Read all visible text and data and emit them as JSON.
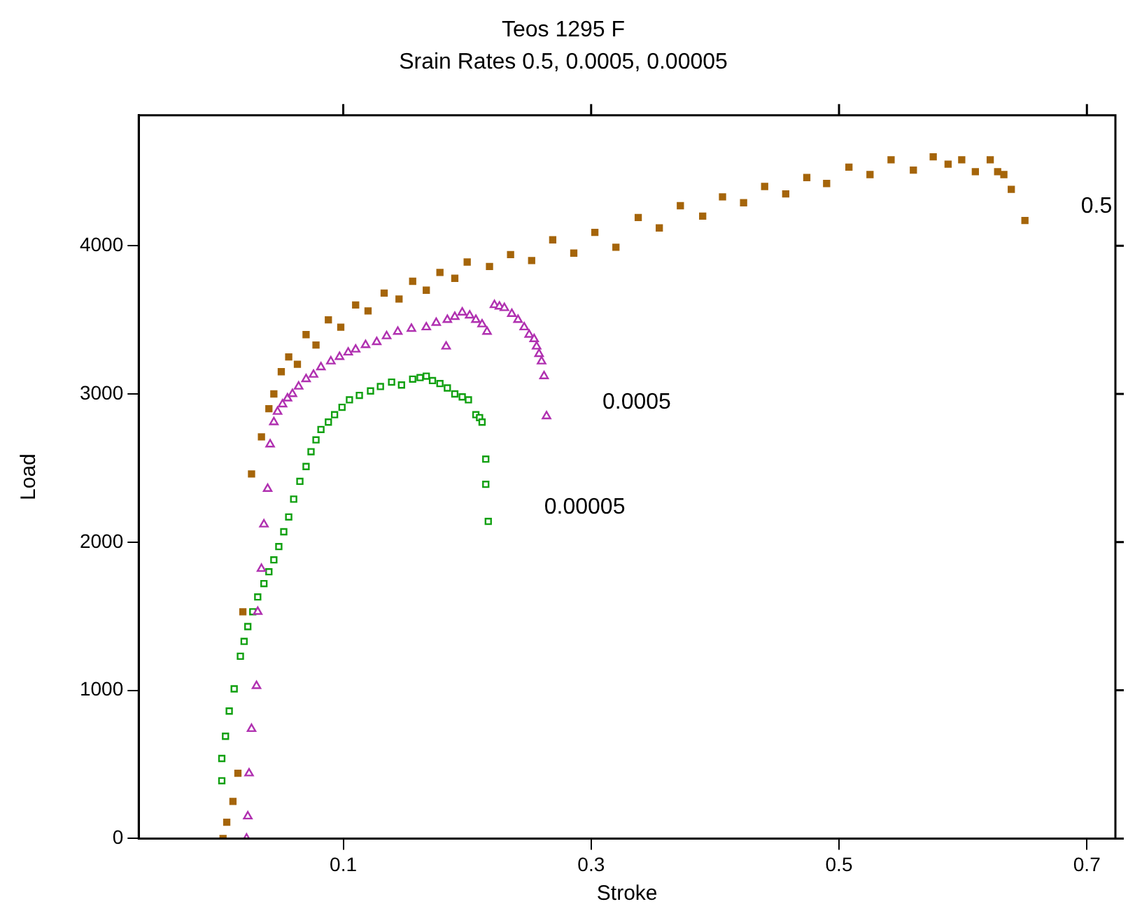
{
  "chart_data": {
    "type": "scatter",
    "title": "Teos 1295 F",
    "subtitle": "Srain Rates 0.5, 0.0005, 0.00005",
    "xlabel": "Stroke",
    "ylabel": "Load",
    "xlim": [
      -0.065,
      0.723
    ],
    "ylim": [
      0,
      4880
    ],
    "xticks": [
      0.1,
      0.3,
      0.5,
      0.7
    ],
    "yticks": [
      0,
      1000,
      2000,
      3000,
      4000
    ],
    "series": [
      {
        "name": "0.5",
        "color": "#a5650a",
        "marker": "square",
        "x": [
          0.003,
          0.006,
          0.011,
          0.015,
          0.019,
          0.026,
          0.034,
          0.04,
          0.044,
          0.05,
          0.056,
          0.063,
          0.07,
          0.078,
          0.088,
          0.098,
          0.11,
          0.12,
          0.133,
          0.145,
          0.156,
          0.167,
          0.178,
          0.19,
          0.2,
          0.218,
          0.235,
          0.252,
          0.269,
          0.286,
          0.303,
          0.32,
          0.338,
          0.355,
          0.372,
          0.39,
          0.406,
          0.423,
          0.44,
          0.457,
          0.474,
          0.49,
          0.508,
          0.525,
          0.542,
          0.56,
          0.576,
          0.588,
          0.599,
          0.61,
          0.622,
          0.628,
          0.633,
          0.639,
          0.65
        ],
        "values": [
          0,
          110,
          250,
          440,
          1530,
          2460,
          2710,
          2900,
          3000,
          3150,
          3250,
          3200,
          3400,
          3330,
          3500,
          3450,
          3600,
          3560,
          3680,
          3640,
          3760,
          3700,
          3820,
          3780,
          3890,
          3860,
          3940,
          3900,
          4040,
          3950,
          4090,
          3990,
          4190,
          4120,
          4270,
          4200,
          4330,
          4290,
          4400,
          4350,
          4460,
          4420,
          4530,
          4480,
          4580,
          4510,
          4600,
          4550,
          4580,
          4500,
          4580,
          4500,
          4480,
          4380,
          4170
        ]
      },
      {
        "name": "0.0005",
        "color": "#b030b0",
        "marker": "triangle",
        "x": [
          0.022,
          0.023,
          0.024,
          0.026,
          0.03,
          0.031,
          0.034,
          0.036,
          0.039,
          0.041,
          0.044,
          0.047,
          0.051,
          0.055,
          0.059,
          0.064,
          0.07,
          0.076,
          0.082,
          0.09,
          0.097,
          0.104,
          0.11,
          0.118,
          0.127,
          0.135,
          0.144,
          0.155,
          0.167,
          0.175,
          0.183,
          0.184,
          0.19,
          0.196,
          0.202,
          0.207,
          0.212,
          0.216,
          0.222,
          0.226,
          0.23,
          0.236,
          0.241,
          0.246,
          0.25,
          0.254,
          0.256,
          0.258,
          0.26,
          0.262,
          0.264
        ],
        "values": [
          0,
          150,
          440,
          740,
          1030,
          1530,
          1820,
          2120,
          2360,
          2660,
          2810,
          2880,
          2930,
          2970,
          3000,
          3050,
          3100,
          3130,
          3180,
          3220,
          3250,
          3280,
          3300,
          3330,
          3350,
          3390,
          3420,
          3440,
          3450,
          3480,
          3320,
          3500,
          3520,
          3550,
          3530,
          3500,
          3470,
          3420,
          3600,
          3590,
          3580,
          3540,
          3500,
          3450,
          3400,
          3370,
          3320,
          3270,
          3220,
          3120,
          2850
        ]
      },
      {
        "name": "0.00005",
        "color": "#10a010",
        "marker": "square",
        "x": [
          0.002,
          0.002,
          0.005,
          0.008,
          0.012,
          0.017,
          0.02,
          0.023,
          0.027,
          0.031,
          0.036,
          0.04,
          0.044,
          0.048,
          0.052,
          0.056,
          0.06,
          0.065,
          0.07,
          0.074,
          0.078,
          0.082,
          0.088,
          0.093,
          0.099,
          0.105,
          0.113,
          0.122,
          0.13,
          0.139,
          0.147,
          0.156,
          0.162,
          0.167,
          0.172,
          0.178,
          0.184,
          0.19,
          0.196,
          0.201,
          0.207,
          0.21,
          0.212,
          0.215,
          0.215,
          0.217
        ],
        "values": [
          390,
          540,
          690,
          860,
          1010,
          1230,
          1330,
          1430,
          1530,
          1630,
          1720,
          1800,
          1880,
          1970,
          2070,
          2170,
          2290,
          2410,
          2510,
          2610,
          2690,
          2760,
          2810,
          2860,
          2910,
          2960,
          2990,
          3020,
          3050,
          3080,
          3060,
          3100,
          3110,
          3120,
          3090,
          3070,
          3040,
          3000,
          2980,
          2960,
          2860,
          2840,
          2810,
          2560,
          2390,
          2140
        ]
      }
    ]
  }
}
